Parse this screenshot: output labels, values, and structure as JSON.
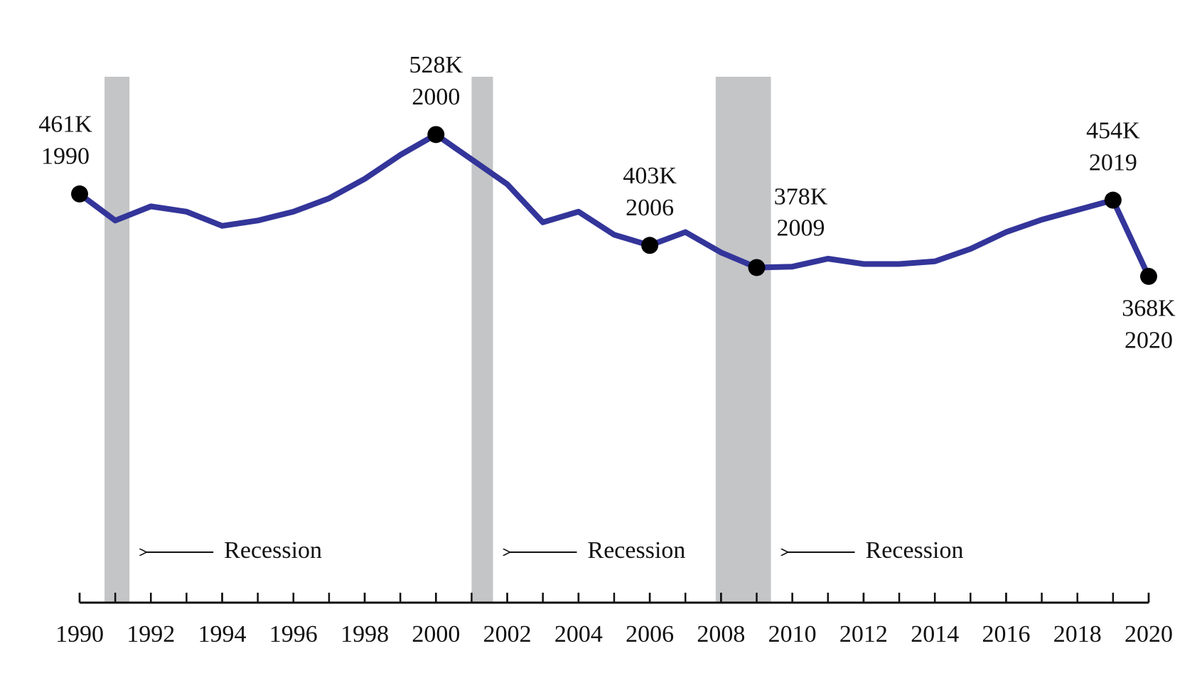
{
  "chart_data": {
    "type": "line",
    "x": [
      1990,
      1991,
      1992,
      1993,
      1994,
      1995,
      1996,
      1997,
      1998,
      1999,
      2000,
      2001,
      2002,
      2003,
      2004,
      2005,
      2006,
      2007,
      2008,
      2009,
      2010,
      2011,
      2012,
      2013,
      2014,
      2015,
      2016,
      2017,
      2018,
      2019,
      2020
    ],
    "series": [
      {
        "color": "#33359a",
        "values": [
          461,
          431,
          447,
          441,
          425,
          431,
          441,
          456,
          478,
          505,
          528,
          500,
          472,
          429,
          441,
          415,
          403,
          418,
          395,
          378,
          379,
          388,
          382,
          382,
          385,
          399,
          418,
          432,
          443,
          454,
          368
        ],
        "value_labels": [
          "461K",
          null,
          null,
          null,
          null,
          null,
          null,
          null,
          null,
          null,
          "528K",
          null,
          null,
          null,
          null,
          null,
          "403K",
          null,
          null,
          "378K",
          null,
          null,
          null,
          null,
          null,
          null,
          null,
          null,
          null,
          "454K",
          "368K"
        ]
      }
    ],
    "xlim": [
      1990,
      2020
    ],
    "xticks": [
      1990,
      1992,
      1994,
      1996,
      1998,
      2000,
      2002,
      2004,
      2006,
      2008,
      2010,
      2012,
      2014,
      2016,
      2018,
      2020
    ],
    "ylim": [
      0,
      590
    ],
    "recessions": [
      {
        "start": 1990.7,
        "end": 1991.4,
        "label": "Recession"
      },
      {
        "start": 2001.0,
        "end": 2001.6,
        "label": "Recession"
      },
      {
        "start": 2007.85,
        "end": 2009.4,
        "label": "Recession"
      }
    ],
    "band_color": "#c4c5c7"
  }
}
